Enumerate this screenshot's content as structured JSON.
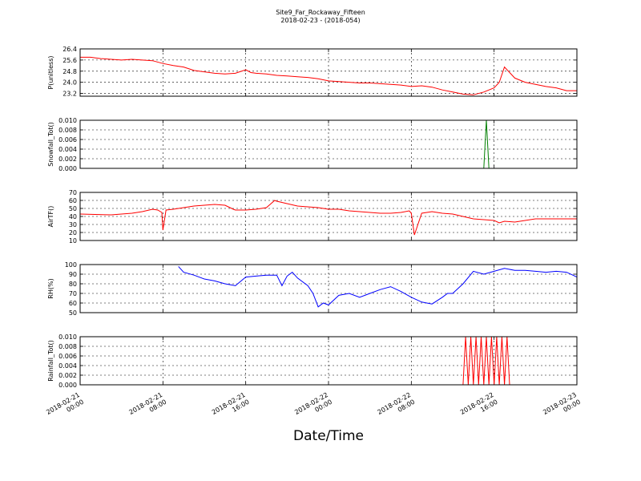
{
  "title": "Site9_Far_Rockaway_Fifteen",
  "subtitle": "2018-02-23 - (2018-054)",
  "xlabel": "Date/Time",
  "colors": {
    "red": "#ff0000",
    "green": "#007f00",
    "blue": "#0000ff"
  },
  "chart_data": [
    {
      "type": "line",
      "ylabel": "P(unitless)",
      "ylim": [
        23.0,
        26.4
      ],
      "yticks": [
        "26.4",
        "25.6",
        "24.8",
        "24.0",
        "23.2"
      ],
      "ytick_values": [
        26.4,
        25.6,
        24.8,
        24.0,
        23.2
      ],
      "grid": true,
      "series": [
        {
          "color": "#ff0000",
          "x": [
            0,
            1,
            2,
            3,
            4,
            5,
            6,
            7,
            8,
            9,
            10,
            11,
            12,
            13,
            14,
            15,
            16,
            16.5,
            17,
            18,
            19,
            20,
            21,
            22,
            23,
            24,
            25,
            26,
            27,
            28,
            29,
            30,
            31,
            32,
            33,
            34,
            35,
            36,
            37,
            38,
            39,
            40,
            40.5,
            41,
            42,
            43,
            44,
            45,
            46,
            47,
            48
          ],
          "y": [
            25.8,
            25.8,
            25.7,
            25.65,
            25.6,
            25.65,
            25.6,
            25.55,
            25.35,
            25.2,
            25.1,
            24.85,
            24.75,
            24.65,
            24.6,
            24.65,
            24.9,
            24.7,
            24.65,
            24.6,
            24.5,
            24.45,
            24.4,
            24.35,
            24.25,
            24.1,
            24.05,
            24.0,
            23.95,
            23.95,
            23.9,
            23.85,
            23.8,
            23.7,
            23.75,
            23.65,
            23.45,
            23.3,
            23.15,
            23.1,
            23.3,
            23.6,
            24.0,
            25.1,
            24.3,
            24.0,
            23.85,
            23.7,
            23.6,
            23.4,
            23.4
          ]
        }
      ]
    },
    {
      "type": "line",
      "ylabel": "Snowfall_Tot()",
      "ylim": [
        0.0,
        0.01
      ],
      "yticks": [
        "0.010",
        "0.008",
        "0.006",
        "0.004",
        "0.002",
        "0.000"
      ],
      "ytick_values": [
        0.01,
        0.008,
        0.006,
        0.004,
        0.002,
        0.0
      ],
      "grid": true,
      "series": [
        {
          "color": "#007f00",
          "x": [
            0,
            39,
            39.25,
            39.5,
            48
          ],
          "y": [
            0.0,
            0.0,
            0.01,
            0.0,
            0.0
          ]
        }
      ]
    },
    {
      "type": "line",
      "ylabel": "AirTF()",
      "ylim": [
        10,
        70
      ],
      "yticks": [
        "70",
        "60",
        "50",
        "40",
        "30",
        "20",
        "10"
      ],
      "ytick_values": [
        70,
        60,
        50,
        40,
        30,
        20,
        10
      ],
      "grid": true,
      "series": [
        {
          "color": "#ff0000",
          "x": [
            0,
            3,
            5,
            6,
            7,
            7.5,
            7.9,
            8,
            8.3,
            9,
            10,
            11,
            12,
            13,
            14,
            14.8,
            15,
            16,
            17,
            18,
            18.8,
            19,
            20,
            21,
            22,
            23,
            24,
            25,
            26,
            27,
            28,
            29,
            30,
            31,
            31.8,
            32,
            32.3,
            33,
            34,
            35,
            36,
            37,
            38,
            39,
            40,
            40.5,
            41,
            42,
            44,
            48
          ],
          "y": [
            43,
            42,
            44,
            46,
            49,
            48,
            45,
            23,
            48,
            49,
            51,
            53,
            54,
            55,
            54,
            49,
            48,
            48,
            49,
            51,
            60,
            59,
            56,
            53,
            52,
            51,
            49,
            49,
            47,
            46,
            45,
            44,
            44,
            45,
            47,
            44,
            17,
            44,
            46,
            44,
            43,
            40,
            37,
            36,
            35,
            32,
            34,
            33,
            37,
            37
          ]
        }
      ]
    },
    {
      "type": "line",
      "ylabel": "RH(%)",
      "ylim": [
        50,
        100
      ],
      "yticks": [
        "100",
        "90",
        "80",
        "70",
        "60",
        "50"
      ],
      "ytick_values": [
        100,
        90,
        80,
        70,
        60,
        50
      ],
      "grid": true,
      "series": [
        {
          "color": "#0000ff",
          "x": [
            9.5,
            10,
            11,
            12,
            13,
            14,
            15,
            16,
            17,
            18,
            19,
            19.5,
            20,
            20.5,
            21,
            22,
            22.5,
            23,
            23.5,
            24,
            25,
            26,
            27,
            28,
            29,
            30,
            31,
            32,
            33,
            34,
            35,
            35.5,
            36,
            37,
            38,
            39,
            40,
            41,
            42,
            43,
            44,
            45,
            46,
            47,
            48
          ],
          "y": [
            98,
            92,
            89,
            85,
            83,
            80,
            78,
            87,
            88,
            89,
            89,
            78,
            88,
            92,
            86,
            78,
            70,
            56,
            60,
            58,
            68,
            70,
            66,
            70,
            74,
            77,
            72,
            66,
            61,
            59,
            66,
            70,
            70,
            80,
            93,
            90,
            93,
            96,
            94,
            94,
            93,
            92,
            93,
            92,
            87
          ]
        }
      ]
    },
    {
      "type": "line",
      "ylabel": "Rainfall_Tot()",
      "ylim": [
        0.0,
        0.01
      ],
      "yticks": [
        "0.010",
        "0.008",
        "0.006",
        "0.004",
        "0.002",
        "0.000"
      ],
      "ytick_values": [
        0.01,
        0.008,
        0.006,
        0.004,
        0.002,
        0.0
      ],
      "grid": true,
      "series": [
        {
          "color": "#ff0000",
          "x": [
            0,
            37,
            37.25,
            37.5,
            37.75,
            38,
            38.25,
            38.5,
            38.75,
            39,
            39.25,
            39.5,
            39.75,
            40,
            40.25,
            40.5,
            40.75,
            41,
            41.25,
            41.5,
            41.75,
            42,
            48
          ],
          "y": [
            0.0,
            0.0,
            0.01,
            0.0,
            0.01,
            0.0,
            0.01,
            0.0,
            0.01,
            0.0,
            0.01,
            0.0,
            0.01,
            0.0,
            0.01,
            0.0,
            0.01,
            0.0,
            0.01,
            0.0,
            0.0,
            0.0,
            0.0
          ]
        }
      ]
    }
  ],
  "x_axis": {
    "xlim": [
      0,
      48
    ],
    "tick_hours": [
      0,
      8,
      16,
      24,
      32,
      40,
      48
    ],
    "tick_lines_1": [
      "2018-02-21",
      "2018-02-21",
      "2018-02-21",
      "2018-02-22",
      "2018-02-22",
      "2018-02-22",
      "2018-02-23"
    ],
    "tick_lines_2": [
      "00:00",
      "08:00",
      "16:00",
      "00:00",
      "08:00",
      "16:00",
      "00:00"
    ]
  }
}
